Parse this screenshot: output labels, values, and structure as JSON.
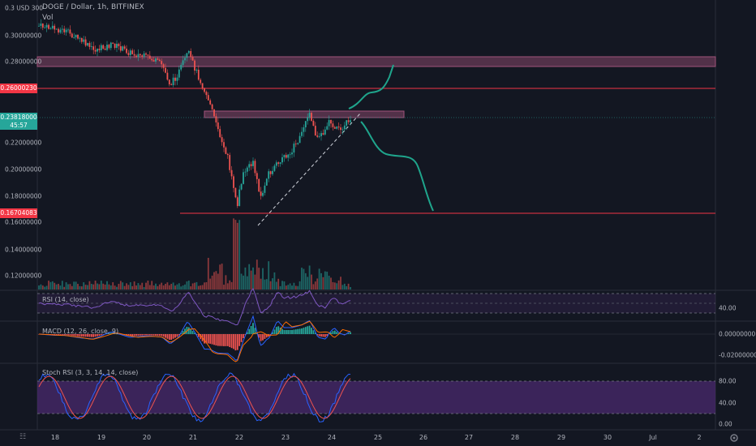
{
  "header": {
    "symbol_line": "DOGE / Dollar, 1h, BITFINEX",
    "volume_label": "Vol"
  },
  "price_axis": {
    "currency_label": "0.3 USD 300",
    "ticks": [
      "0.30000000",
      "0.28000000",
      "0.22000000",
      "0.20000000",
      "0.18000000",
      "0.16000000",
      "0.14000000",
      "0.12000000"
    ],
    "tag_resistance": "0.26000230",
    "tag_current": "0.23818000",
    "tag_current_sub": "45:57",
    "tag_support": "0.16704083",
    "colors": {
      "resistance": "#f23645",
      "current": "#26a69a",
      "support": "#f23645"
    }
  },
  "indicators": {
    "rsi_label": "RSI (14, close)",
    "rsi_level": "40.00",
    "macd_label": "MACD (12, 26, close, 9)",
    "macd_ticks": [
      "0.00000000",
      "-0.02000000"
    ],
    "stoch_label": "Stoch RSI (3, 3, 14, 14, close)",
    "stoch_ticks": [
      "80.00",
      "40.00",
      "0.00"
    ]
  },
  "time_axis": {
    "ticks": [
      "18",
      "19",
      "20",
      "21",
      "22",
      "23",
      "24",
      "25",
      "26",
      "27",
      "28",
      "29",
      "30",
      "Jul",
      "2"
    ]
  },
  "icons": {
    "logo": "tradingview-logo-icon",
    "settings": "gear-icon"
  },
  "colors": {
    "up": "#26a69a",
    "down": "#ef5350",
    "zone": "#a0537a",
    "projection": "#1fa58c",
    "stoch_band": "#4a2a6e"
  }
}
